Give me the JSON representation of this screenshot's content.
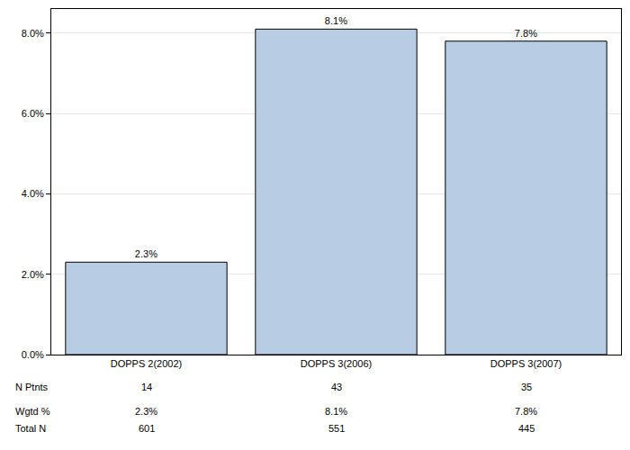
{
  "chart_data": {
    "type": "bar",
    "categories": [
      "DOPPS 2(2002)",
      "DOPPS 3(2006)",
      "DOPPS 3(2007)"
    ],
    "values": [
      2.3,
      8.1,
      7.8
    ],
    "value_labels": [
      "2.3%",
      "8.1%",
      "7.8%"
    ],
    "data_labels": true,
    "color": "#b8cce4",
    "ylim": [
      0,
      8.6
    ],
    "yticks": [
      {
        "value": 0,
        "label": "0.0%"
      },
      {
        "value": 2,
        "label": "2.0%"
      },
      {
        "value": 4,
        "label": "4.0%"
      },
      {
        "value": 6,
        "label": "6.0%"
      },
      {
        "value": 8,
        "label": "8.0%"
      }
    ],
    "grid": true
  },
  "table": {
    "rows": [
      {
        "label": "N Ptnts",
        "cells": [
          "14",
          "43",
          "35"
        ]
      },
      {
        "label": "Wgtd %",
        "cells": [
          "2.3%",
          "8.1%",
          "7.8%"
        ]
      },
      {
        "label": "Total N",
        "cells": [
          "601",
          "551",
          "445"
        ]
      }
    ]
  }
}
